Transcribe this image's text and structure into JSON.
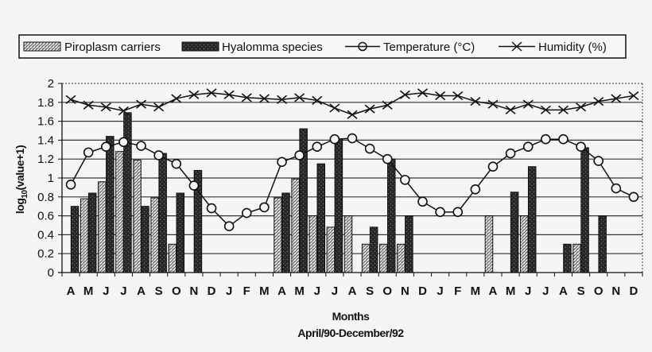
{
  "chart_data": {
    "type": "bar",
    "title": "",
    "xlabel": "Months",
    "xlabel_sub": "April/90-December/92",
    "ylabel": "log10(value+1)",
    "ylabel_parts": {
      "base": "log",
      "sub": "10",
      "rest": "(value+1)"
    },
    "ylim": [
      0,
      2
    ],
    "yticks": [
      "0",
      "0.2",
      "0.4",
      "0.6",
      "0.8",
      "1",
      "1.2",
      "1.4",
      "1.6",
      "1.8",
      "2"
    ],
    "grid": true,
    "legend_position": "top",
    "categories": [
      "A",
      "M",
      "J",
      "J",
      "A",
      "S",
      "O",
      "N",
      "D",
      "J",
      "F",
      "M",
      "A",
      "M",
      "J",
      "J",
      "A",
      "S",
      "O",
      "N",
      "D",
      "J",
      "F",
      "M",
      "A",
      "M",
      "J",
      "J",
      "A",
      "S",
      "O",
      "N",
      "D"
    ],
    "series": [
      {
        "name": "Piroplasm carriers",
        "kind": "bar",
        "pattern": "hatched-light",
        "values": [
          null,
          0.78,
          0.96,
          1.28,
          1.19,
          0.79,
          0.3,
          null,
          null,
          null,
          null,
          null,
          0.79,
          0.99,
          0.6,
          0.48,
          0.6,
          0.3,
          0.3,
          0.3,
          null,
          null,
          null,
          null,
          0.6,
          null,
          0.6,
          null,
          null,
          0.3,
          null,
          null,
          null
        ]
      },
      {
        "name": "Hyalomma species",
        "kind": "bar",
        "pattern": "dark-speckled",
        "values": [
          0.7,
          0.84,
          1.44,
          1.69,
          0.7,
          1.26,
          0.84,
          1.08,
          null,
          null,
          null,
          null,
          0.84,
          1.52,
          1.15,
          1.41,
          null,
          0.48,
          1.2,
          0.6,
          null,
          null,
          null,
          null,
          null,
          0.85,
          1.12,
          null,
          0.3,
          1.32,
          0.6,
          null,
          null
        ]
      },
      {
        "name": "Temperature (°C)",
        "kind": "line",
        "marker": "circle",
        "values": [
          0.93,
          1.27,
          1.33,
          1.38,
          1.34,
          1.24,
          1.15,
          0.92,
          0.68,
          0.49,
          0.63,
          0.69,
          1.17,
          1.24,
          1.33,
          1.41,
          1.42,
          1.31,
          1.2,
          0.98,
          0.75,
          0.64,
          0.64,
          0.88,
          1.12,
          1.26,
          1.33,
          1.41,
          1.41,
          1.33,
          1.18,
          0.89,
          0.8
        ]
      },
      {
        "name": "Humidity (%)",
        "kind": "line",
        "marker": "x",
        "values": [
          1.83,
          1.77,
          1.75,
          1.71,
          1.78,
          1.75,
          1.84,
          1.88,
          1.9,
          1.88,
          1.85,
          1.84,
          1.83,
          1.85,
          1.82,
          1.74,
          1.67,
          1.73,
          1.77,
          1.88,
          1.9,
          1.87,
          1.87,
          1.81,
          1.78,
          1.72,
          1.78,
          1.72,
          1.72,
          1.75,
          1.81,
          1.84,
          1.87
        ]
      }
    ]
  },
  "legend": {
    "items": [
      {
        "label": "Piroplasm carriers",
        "symbol": "hatched-bar"
      },
      {
        "label": "Hyalomma species",
        "symbol": "dark-bar"
      },
      {
        "label": "Temperature (°C)",
        "symbol": "line-circle"
      },
      {
        "label": "Humidity (%)",
        "symbol": "line-x"
      }
    ]
  },
  "colors": {
    "background": "#f5f5f5",
    "ink": "#111111",
    "hatched_bar": "#c8c8c8",
    "dark_bar": "#2a2a2a",
    "grid": "#333333"
  }
}
